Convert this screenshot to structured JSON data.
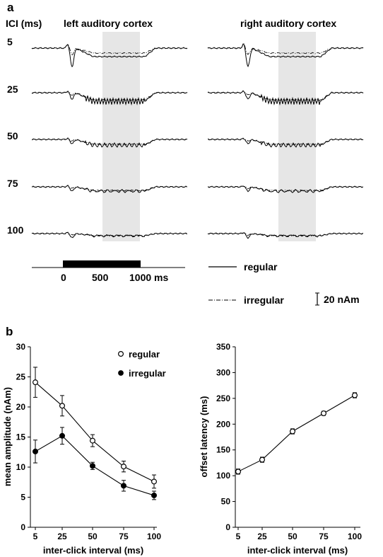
{
  "panel_labels": {
    "a": "a",
    "b": "b"
  },
  "panel_a": {
    "ici_header": "ICI (ms)",
    "hemispheres": [
      "left auditory cortex",
      "right auditory cortex"
    ],
    "ici_rows": [
      "5",
      "25",
      "50",
      "75",
      "100"
    ],
    "time_axis": {
      "ticks": [
        "0",
        "500",
        "1000 ms"
      ],
      "stimulus_ms": [
        0,
        1000
      ],
      "analysis_window_ms": [
        500,
        1000
      ]
    },
    "legend": {
      "regular": "regular",
      "irregular": "irregular",
      "scale": "20 nAm"
    }
  },
  "chart_data": [
    {
      "type": "line",
      "xlabel": "inter-click interval (ms)",
      "ylabel": "mean amplitude (nAm)",
      "x": [
        5,
        25,
        50,
        75,
        100
      ],
      "xticks": [
        "5",
        "25",
        "50",
        "75",
        "100"
      ],
      "yticks": [
        "0",
        "5",
        "10",
        "15",
        "20",
        "25",
        "30"
      ],
      "ylim": [
        0,
        30
      ],
      "legend_position": "top-right",
      "series": [
        {
          "name": "regular",
          "marker": "open-circle",
          "values": [
            24.1,
            20.2,
            14.4,
            10.1,
            7.6
          ],
          "error": [
            2.5,
            1.7,
            1.0,
            0.9,
            1.1
          ]
        },
        {
          "name": "irregular",
          "marker": "filled-circle",
          "values": [
            12.6,
            15.2,
            10.2,
            6.9,
            5.3
          ],
          "error": [
            1.9,
            1.4,
            0.6,
            0.9,
            0.7
          ]
        }
      ]
    },
    {
      "type": "line",
      "xlabel": "inter-click interval (ms)",
      "ylabel": "offset latency (ms)",
      "x": [
        5,
        25,
        50,
        75,
        100
      ],
      "xticks": [
        "5",
        "25",
        "50",
        "75",
        "100"
      ],
      "yticks": [
        "0",
        "50",
        "100",
        "150",
        "200",
        "250",
        "300",
        "350"
      ],
      "ylim": [
        0,
        350
      ],
      "series": [
        {
          "marker": "open-circle",
          "values": [
            108,
            131,
            186,
            221,
            256
          ],
          "error": [
            5,
            5,
            5,
            4,
            5
          ]
        }
      ]
    }
  ]
}
